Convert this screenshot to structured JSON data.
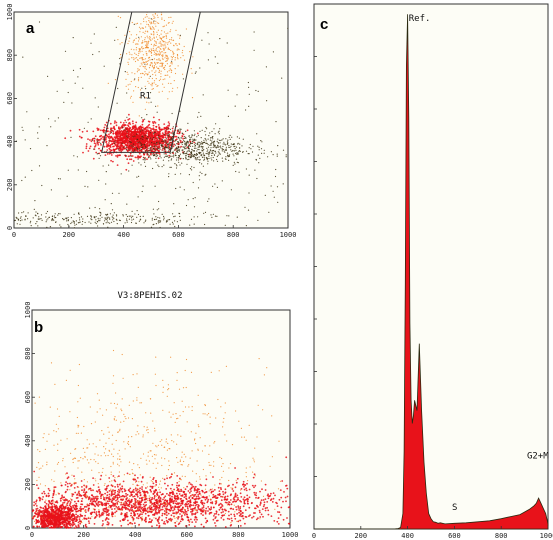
{
  "colors": {
    "dense": "#e8121a",
    "medium": "#f08a2a",
    "sparse": "#3a3010",
    "gate": "#333333"
  },
  "chart_data": [
    {
      "type": "scatter",
      "panel": "a",
      "xlim": [
        0,
        1000
      ],
      "ylim": [
        0,
        1000
      ],
      "xticks": [
        "0",
        "200",
        "400",
        "600",
        "800",
        "1000"
      ],
      "yticks": [
        "0",
        "200",
        "400",
        "600",
        "800",
        "1000"
      ],
      "gate": {
        "label": "R1",
        "polygon": [
          [
            320,
            350
          ],
          [
            430,
            1000
          ],
          [
            680,
            1000
          ],
          [
            570,
            350
          ]
        ]
      },
      "clusters": [
        {
          "label": "main",
          "center": [
            450,
            410
          ],
          "spread": [
            70,
            35
          ],
          "count": 1500,
          "density": "dense"
        },
        {
          "label": "upper",
          "center": [
            510,
            820
          ],
          "spread": [
            50,
            100
          ],
          "count": 550,
          "density": "medium"
        },
        {
          "label": "tail",
          "center": [
            630,
            370
          ],
          "spread": [
            110,
            40
          ],
          "count": 700,
          "density": "sparse"
        },
        {
          "label": "background",
          "center": [
            500,
            300
          ],
          "spread": [
            400,
            350
          ],
          "count": 420,
          "density": "sparse"
        },
        {
          "label": "baseline",
          "center": [
            250,
            40
          ],
          "spread": [
            250,
            20
          ],
          "count": 300,
          "density": "sparse"
        }
      ]
    },
    {
      "type": "scatter",
      "panel": "b",
      "title": "V3:8PEHIS.02",
      "xlim": [
        0,
        1000
      ],
      "ylim": [
        0,
        1000
      ],
      "xticks": [
        "0",
        "200",
        "400",
        "600",
        "800",
        "1000"
      ],
      "yticks": [
        "0",
        "200",
        "400",
        "600",
        "800",
        "1000"
      ],
      "clusters": [
        {
          "label": "origin",
          "center": [
            90,
            40
          ],
          "spread": [
            40,
            30
          ],
          "count": 900,
          "density": "dense"
        },
        {
          "label": "band",
          "center": [
            450,
            110
          ],
          "spread": [
            280,
            50
          ],
          "count": 1800,
          "density": "dense"
        },
        {
          "label": "spread",
          "center": [
            380,
            300
          ],
          "spread": [
            260,
            200
          ],
          "count": 700,
          "density": "medium"
        }
      ]
    },
    {
      "type": "area",
      "panel": "c",
      "xlim": [
        0,
        1000
      ],
      "xticks": [
        "0",
        "200",
        "400",
        "600",
        "800",
        "1000"
      ],
      "x": [
        0,
        340,
        360,
        370,
        380,
        385,
        390,
        395,
        400,
        405,
        410,
        415,
        420,
        425,
        430,
        440,
        450,
        460,
        470,
        480,
        490,
        500,
        510,
        520,
        530,
        540,
        560,
        600,
        650,
        700,
        750,
        800,
        850,
        880,
        900,
        920,
        940,
        950,
        960,
        970,
        980,
        990,
        1000
      ],
      "y": [
        0,
        0,
        1,
        3,
        30,
        150,
        480,
        900,
        1000,
        800,
        400,
        250,
        205,
        220,
        250,
        230,
        360,
        230,
        130,
        70,
        30,
        20,
        14,
        13,
        11,
        12,
        10,
        11,
        12,
        14,
        16,
        20,
        25,
        28,
        33,
        38,
        45,
        50,
        60,
        50,
        40,
        30,
        10
      ],
      "annotations": [
        {
          "text": "Ref.",
          "x": 405,
          "y": 1010
        },
        {
          "text": "S",
          "x": 590,
          "y": 60
        },
        {
          "text": "G2+M",
          "x": 910,
          "y": 160
        }
      ]
    }
  ]
}
